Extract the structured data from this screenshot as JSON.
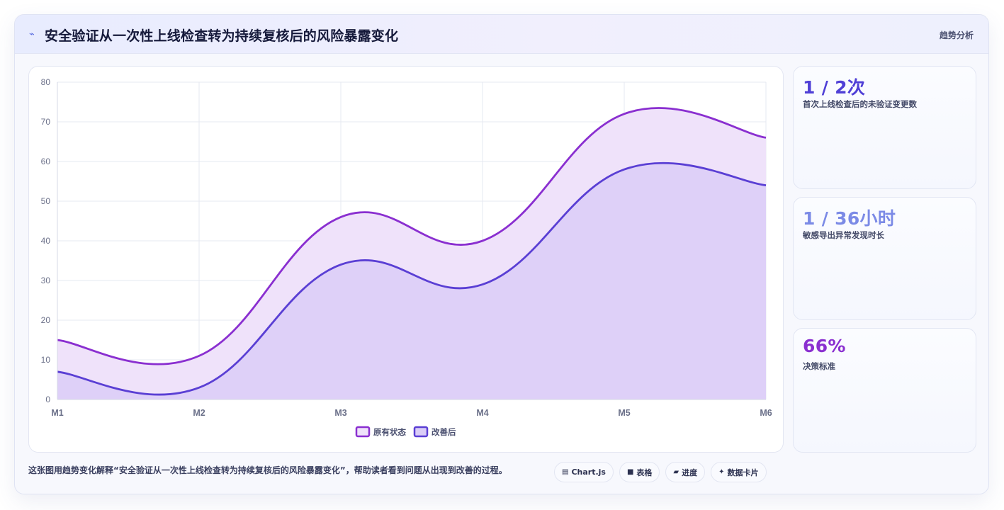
{
  "header": {
    "icon": "trend-line-icon",
    "title": "安全验证从一次性上线检查转为持续复核后的风险暴露变化",
    "tag": "趋势分析"
  },
  "kpis": [
    {
      "value": "1 / 2次",
      "label": "首次上线检查后的未验证变更数",
      "color": "#4f3fd6"
    },
    {
      "value": "1 / 36小时",
      "label": "敏感导出异常发现时长",
      "color": "#7b8ae6"
    },
    {
      "value": "66%",
      "label": "决策标准",
      "color": "#8a2fd0"
    }
  ],
  "caption": "这张图用趋势变化解释“安全验证从一次性上线检查转为持续复核后的风险暴露变化”，帮助读者看到问题从出现到改善的过程。",
  "chips": [
    {
      "icon": "chart-icon",
      "glyph": "▤",
      "label": "Chart.js"
    },
    {
      "icon": "table-icon",
      "glyph": "■",
      "label": "表格"
    },
    {
      "icon": "progress-icon",
      "glyph": "▰",
      "label": "进度"
    },
    {
      "icon": "data-card-icon",
      "glyph": "✦",
      "label": "数据卡片"
    }
  ],
  "chart_data": {
    "type": "area",
    "categories": [
      "M1",
      "M2",
      "M3",
      "M4",
      "M5",
      "M6"
    ],
    "ylim": [
      0,
      80
    ],
    "yticks": [
      0,
      10,
      20,
      30,
      40,
      50,
      60,
      70,
      80
    ],
    "grid": true,
    "legend_position": "bottom",
    "series": [
      {
        "name": "原有状态",
        "values": [
          15,
          11,
          46,
          40,
          72,
          66
        ],
        "line": "#8a2fd0",
        "fill": "#efe2fa"
      },
      {
        "name": "改善后",
        "values": [
          7,
          3,
          34,
          29,
          58,
          54
        ],
        "line": "#5a3fd4",
        "fill": "#dacdf7"
      }
    ]
  }
}
